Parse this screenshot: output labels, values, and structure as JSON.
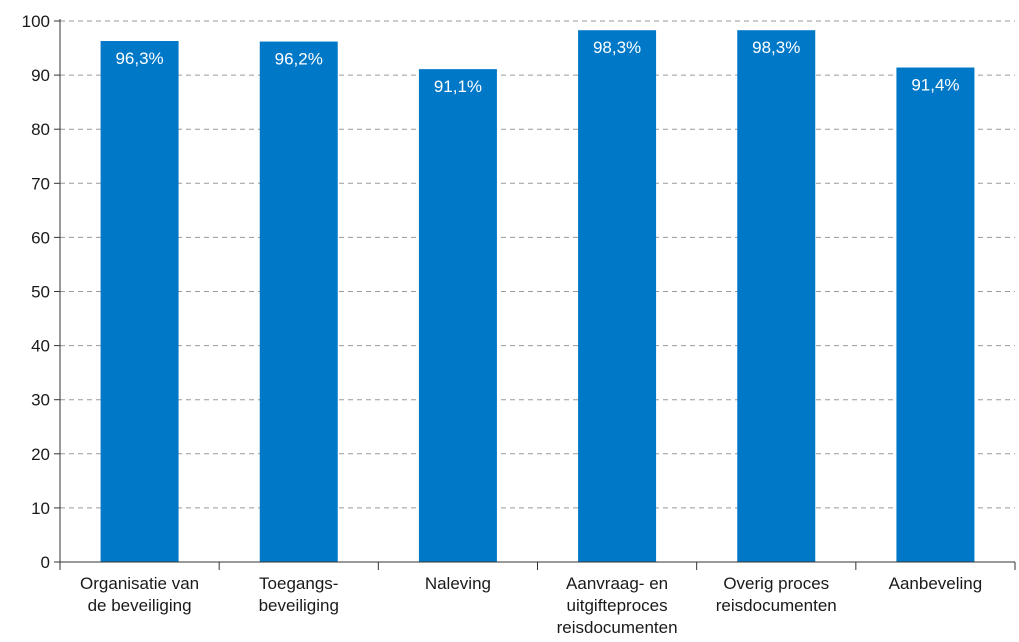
{
  "chart_data": {
    "type": "bar",
    "categories": [
      [
        "Organisatie van",
        "de beveiliging"
      ],
      [
        "Toegangs-",
        "beveiliging"
      ],
      [
        "Naleving"
      ],
      [
        "Aanvraag- en",
        "uitgifteproces",
        "reisdocumenten"
      ],
      [
        "Overig proces",
        "reisdocumenten"
      ],
      [
        "Aanbeveling"
      ]
    ],
    "values": [
      96.3,
      96.2,
      91.1,
      98.3,
      98.3,
      91.4
    ],
    "data_labels": [
      "96,3%",
      "96,2%",
      "91,1%",
      "98,3%",
      "98,3%",
      "91,4%"
    ],
    "ylim": [
      0,
      100
    ],
    "yticks": [
      0,
      10,
      20,
      30,
      40,
      50,
      60,
      70,
      80,
      90,
      100
    ],
    "grid": true,
    "bar_color": "#0078c8"
  }
}
